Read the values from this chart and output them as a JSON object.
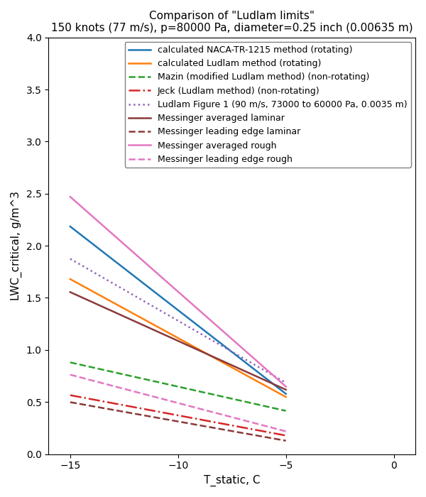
{
  "title_line1": "Comparison of \"Ludlam limits\"",
  "title_line2": "150 knots (77 m/s), p=80000 Pa, diameter=0.25 inch (0.00635 m)",
  "xlabel": "T_static, C",
  "ylabel": "LWC_critical, g/m^3",
  "xlim": [
    -16,
    1
  ],
  "ylim": [
    0.0,
    4.0
  ],
  "xticks": [
    -15,
    -10,
    -5,
    0
  ],
  "yticks": [
    0.0,
    0.5,
    1.0,
    1.5,
    2.0,
    2.5,
    3.0,
    3.5,
    4.0
  ],
  "lines": [
    {
      "label": "calculated NACA-TR-1215 method (rotating)",
      "color": "#1f77b4",
      "linestyle": "solid",
      "linewidth": 1.8,
      "x": [
        -15,
        -5
      ],
      "y": [
        2.185,
        0.578
      ]
    },
    {
      "label": "calculated Ludlam method (rotating)",
      "color": "#ff7f0e",
      "linestyle": "solid",
      "linewidth": 1.8,
      "x": [
        -15,
        -5
      ],
      "y": [
        1.68,
        0.548
      ]
    },
    {
      "label": "Mazin (modified Ludlam method) (non-rotating)",
      "color": "#2ca02c",
      "linestyle": "dashed",
      "linewidth": 1.8,
      "x": [
        -15,
        -5
      ],
      "y": [
        0.88,
        0.415
      ]
    },
    {
      "label": "Jeck (Ludlam method) (non-rotating)",
      "color": "#d62728",
      "linestyle": "dashdot",
      "linewidth": 1.8,
      "x": [
        -15,
        -5
      ],
      "y": [
        0.565,
        0.178
      ]
    },
    {
      "label": "Ludlam Figure 1 (90 m/s, 73000 to 60000 Pa, 0.0035 m)",
      "color": "#9467bd",
      "linestyle": "dotted",
      "linewidth": 1.8,
      "x": [
        -15,
        -5
      ],
      "y": [
        1.875,
        0.685
      ]
    },
    {
      "label": "Messinger averaged laminar",
      "color": "#8B3A3A",
      "linestyle": "solid",
      "linewidth": 1.8,
      "x": [
        -15,
        -5
      ],
      "y": [
        1.555,
        0.618
      ]
    },
    {
      "label": "Messinger leading edge laminar",
      "color": "#8B3A3A",
      "linestyle": "dashed",
      "linewidth": 1.8,
      "x": [
        -15,
        -5
      ],
      "y": [
        0.498,
        0.128
      ]
    },
    {
      "label": "Messinger averaged rough",
      "color": "#e377c2",
      "linestyle": "solid",
      "linewidth": 1.8,
      "x": [
        -15,
        -5
      ],
      "y": [
        2.47,
        0.648
      ]
    },
    {
      "label": "Messinger leading edge rough",
      "color": "#e377c2",
      "linestyle": "dashed",
      "linewidth": 1.8,
      "x": [
        -15,
        -5
      ],
      "y": [
        0.762,
        0.218
      ]
    }
  ],
  "legend_fontsize": 9,
  "legend_loc": "upper right",
  "tick_fontsize": 10,
  "xlabel_fontsize": 11,
  "ylabel_fontsize": 11,
  "title_fontsize": 11
}
